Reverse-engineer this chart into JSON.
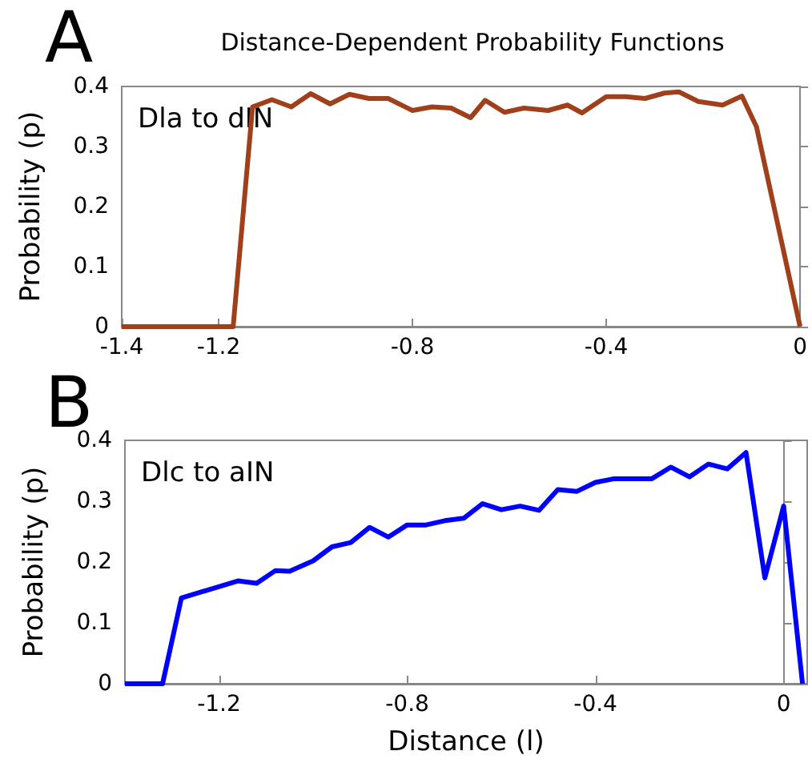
{
  "chart_data": [
    {
      "type": "line",
      "title": "Distance-Dependent Probability Functions",
      "ylabel": "Probability (p)",
      "annotations": [
        "A",
        "Dla to dIN"
      ],
      "xlim": [
        -1.4,
        0
      ],
      "xticks": [
        -1.4,
        -1.2,
        -0.8,
        -0.4,
        0
      ],
      "ylim": [
        0,
        0.4
      ],
      "yticks": [
        0,
        0.1,
        0.2,
        0.3,
        0.4
      ],
      "marker": "none",
      "series": [
        {
          "color": "#a0401a",
          "x": [
            -1.4,
            -1.17,
            -1.13,
            -1.09,
            -1.05,
            -1.01,
            -0.97,
            -0.93,
            -0.89,
            -0.85,
            -0.8,
            -0.76,
            -0.72,
            -0.68,
            -0.65,
            -0.61,
            -0.57,
            -0.52,
            -0.48,
            -0.45,
            -0.4,
            -0.36,
            -0.32,
            -0.28,
            -0.25,
            -0.21,
            -0.16,
            -0.12,
            -0.09,
            0
          ],
          "values": [
            0,
            0,
            0.366,
            0.378,
            0.366,
            0.388,
            0.371,
            0.387,
            0.38,
            0.38,
            0.36,
            0.366,
            0.364,
            0.348,
            0.377,
            0.357,
            0.364,
            0.36,
            0.369,
            0.356,
            0.383,
            0.383,
            0.38,
            0.389,
            0.391,
            0.375,
            0.369,
            0.384,
            0.333,
            0
          ]
        }
      ]
    },
    {
      "type": "line",
      "xlabel": "Distance (l)",
      "ylabel": "Probability (p)",
      "annotations": [
        "B",
        "Dlc to aIN"
      ],
      "xlim": [
        -1.4,
        0.05
      ],
      "xticks": [
        -1.2,
        -0.8,
        -0.4,
        0
      ],
      "ylim": [
        0,
        0.4
      ],
      "yticks": [
        0,
        0.1,
        0.2,
        0.3,
        0.4
      ],
      "marker": "none",
      "series": [
        {
          "color": "#0000ff",
          "x": [
            -1.4,
            -1.32,
            -1.28,
            -1.16,
            -1.12,
            -1.08,
            -1.05,
            -1.0,
            -0.96,
            -0.92,
            -0.88,
            -0.84,
            -0.8,
            -0.76,
            -0.72,
            -0.68,
            -0.64,
            -0.6,
            -0.56,
            -0.52,
            -0.48,
            -0.44,
            -0.4,
            -0.36,
            -0.28,
            -0.24,
            -0.2,
            -0.16,
            -0.12,
            -0.08,
            -0.04,
            0,
            0.04
          ],
          "values": [
            0,
            0,
            0.141,
            0.169,
            0.165,
            0.186,
            0.185,
            0.202,
            0.225,
            0.232,
            0.257,
            0.241,
            0.261,
            0.261,
            0.268,
            0.272,
            0.296,
            0.286,
            0.292,
            0.285,
            0.319,
            0.316,
            0.331,
            0.337,
            0.337,
            0.356,
            0.34,
            0.361,
            0.353,
            0.38,
            0.174,
            0.292,
            0
          ]
        }
      ]
    }
  ]
}
